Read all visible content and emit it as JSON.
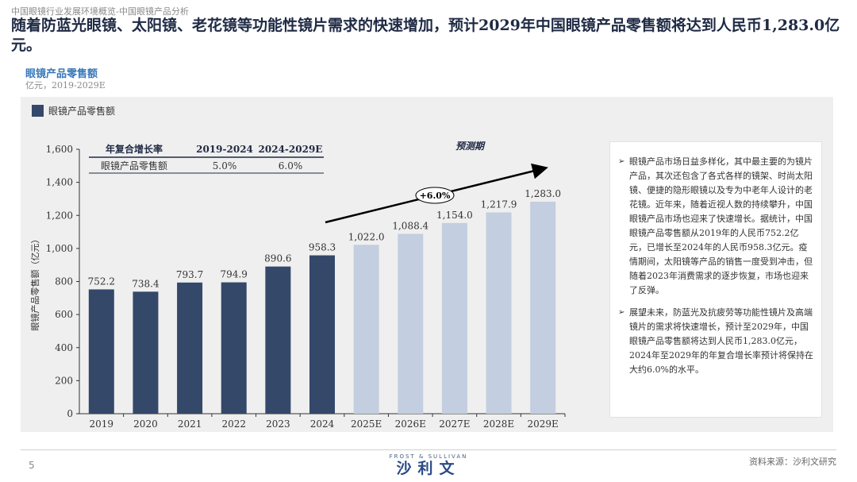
{
  "breadcrumb": "中国眼镜行业发展环境概览-中国眼镜产品分析",
  "headline": "随着防蓝光眼镜、太阳镜、老花镜等功能性镜片需求的快速增加，预计2029年中国眼镜产品零售额将达到人民币1,283.0亿元。",
  "chart_title": "眼镜产品零售额",
  "chart_unit": "亿元，2019-2029E",
  "legend_label": "眼镜产品零售额",
  "forecast_label": "预测期",
  "growth_label": "+6.0%",
  "cagr_table": {
    "header": [
      "年复合增长率",
      "2019-2024",
      "2024-2029E"
    ],
    "row": [
      "眼镜产品零售额",
      "5.0%",
      "6.0%"
    ]
  },
  "colors": {
    "actual": "#34486a",
    "forecast": "#c3cee0"
  },
  "chart_data": {
    "type": "bar",
    "title": "眼镜产品零售额",
    "ylabel": "眼镜产品零售额（亿元）",
    "xlabel": "",
    "ylim": [
      0,
      1600
    ],
    "yticks": [
      "0",
      "200",
      "400",
      "600",
      "800",
      "1,000",
      "1,200",
      "1,400",
      "1,600"
    ],
    "ytick_values": [
      0,
      200,
      400,
      600,
      800,
      1000,
      1200,
      1400,
      1600
    ],
    "categories": [
      "2019",
      "2020",
      "2021",
      "2022",
      "2023",
      "2024",
      "2025E",
      "2026E",
      "2027E",
      "2028E",
      "2029E"
    ],
    "values": [
      752.2,
      738.4,
      793.7,
      794.9,
      890.6,
      958.3,
      1022.0,
      1088.4,
      1154.0,
      1217.9,
      1283.0
    ],
    "labels": [
      "752.2",
      "738.4",
      "793.7",
      "794.9",
      "890.6",
      "958.3",
      "1,022.0",
      "1,088.4",
      "1,154.0",
      "1,217.9",
      "1,283.0"
    ],
    "forecast": [
      false,
      false,
      false,
      false,
      false,
      false,
      true,
      true,
      true,
      true,
      true
    ]
  },
  "notes": [
    "眼镜产品市场日益多样化，其中最主要的为镜片产品，其次还包含了各式各样的镜架、时尚太阳镜、便捷的隐形眼镜以及专为中老年人设计的老花镜。近年来，随着近视人数的持续攀升，中国眼镜产品市场也迎来了快速增长。据统计，中国眼镜产品零售额从2019年的人民币752.2亿元，已增长至2024年的人民币958.3亿元。疫情期间，太阳镜等产品的销售一度受到冲击，但随着2023年消费需求的逐步恢复，市场也迎来了反弹。",
    "展望未来，防蓝光及抗疲劳等功能性镜片及高端镜片的需求将快速增长，预计至2029年，中国眼镜产品零售额将达到人民币1,283.0亿元，2024年至2029年的年复合增长率预计将保持在大约6.0%的水平。"
  ],
  "footer": {
    "page_number": "5",
    "logo_top": "FROST & SULLIVAN",
    "logo_main": "沙利文",
    "source": "资料来源：沙利文研究"
  }
}
